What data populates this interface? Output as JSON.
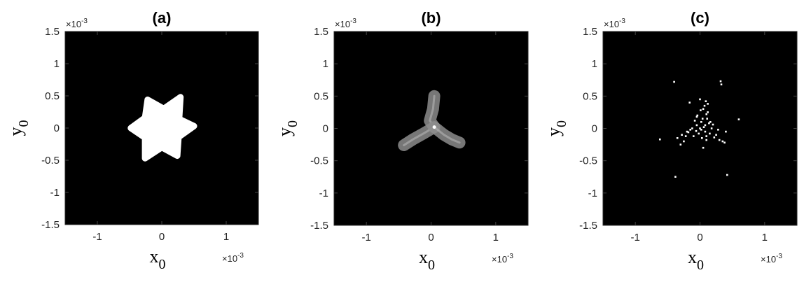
{
  "chart_data": [
    {
      "type": "heatmap",
      "title": "(a)",
      "xlabel": "x",
      "xlabel_sub": "0",
      "ylabel": "y",
      "ylabel_sub": "0",
      "x_exponent": "×10",
      "x_exponent_power": "-3",
      "y_exponent": "×10",
      "y_exponent_power": "-3",
      "xlim": [
        -1.5,
        1.5
      ],
      "ylim": [
        -1.5,
        1.5
      ],
      "x_ticks": [
        -1,
        0,
        1
      ],
      "x_tick_labels": [
        "-1",
        "0",
        "1"
      ],
      "y_ticks": [
        1.5,
        1,
        0.5,
        0,
        -0.5,
        -1,
        -1.5
      ],
      "y_tick_labels": [
        "1.5",
        "1",
        "0.5",
        "0",
        "-0.5",
        "-1",
        "-1.5"
      ],
      "background_color": "#000000",
      "shape": "six-pointed-star",
      "shape_color": "#ffffff",
      "shape_vertices": [
        [
          0.5,
          0.03
        ],
        [
          0.27,
          0.14
        ],
        [
          0.29,
          0.48
        ],
        [
          0.03,
          0.3
        ],
        [
          -0.22,
          0.44
        ],
        [
          -0.26,
          0.16
        ],
        [
          -0.48,
          0.0
        ],
        [
          -0.26,
          -0.15
        ],
        [
          -0.26,
          -0.47
        ],
        [
          0.0,
          -0.3
        ],
        [
          0.24,
          -0.43
        ],
        [
          0.26,
          -0.14
        ]
      ]
    },
    {
      "type": "heatmap",
      "title": "(b)",
      "xlabel": "x",
      "xlabel_sub": "0",
      "ylabel": "y",
      "ylabel_sub": "0",
      "x_exponent": "×10",
      "x_exponent_power": "-3",
      "y_exponent": "×10",
      "y_exponent_power": "-3",
      "xlim": [
        -1.5,
        1.5
      ],
      "ylim": [
        -1.5,
        1.5
      ],
      "x_ticks": [
        -1,
        0,
        1
      ],
      "x_tick_labels": [
        "-1",
        "0",
        "1"
      ],
      "y_ticks": [
        1.5,
        1,
        0.5,
        0,
        -0.5,
        -1,
        -1.5
      ],
      "y_tick_labels": [
        "1.5",
        "1",
        "0.5",
        "0",
        "-0.5",
        "-1",
        "-1.5"
      ],
      "background_color": "#000000",
      "shape": "three-armed-tripod",
      "shape_color": "#8c8c8c",
      "center": [
        0.05,
        0.02
      ],
      "arms": [
        [
          [
            0.05,
            0.02
          ],
          [
            -0.02,
            0.12
          ],
          [
            0.03,
            0.3
          ],
          [
            0.05,
            0.5
          ]
        ],
        [
          [
            0.05,
            0.02
          ],
          [
            -0.12,
            -0.08
          ],
          [
            -0.28,
            -0.17
          ],
          [
            -0.42,
            -0.26
          ]
        ],
        [
          [
            0.05,
            0.02
          ],
          [
            0.2,
            -0.1
          ],
          [
            0.32,
            -0.17
          ],
          [
            0.44,
            -0.22
          ]
        ]
      ]
    },
    {
      "type": "scatter",
      "title": "(c)",
      "xlabel": "x",
      "xlabel_sub": "0",
      "ylabel": "y",
      "ylabel_sub": "0",
      "x_exponent": "×10",
      "x_exponent_power": "-3",
      "y_exponent": "×10",
      "y_exponent_power": "-3",
      "xlim": [
        -1.5,
        1.5
      ],
      "ylim": [
        -1.5,
        1.5
      ],
      "x_ticks": [
        -1,
        0,
        1
      ],
      "x_tick_labels": [
        "-1",
        "0",
        "1"
      ],
      "y_ticks": [
        1.5,
        1,
        0.5,
        0,
        -0.5,
        -1,
        -1.5
      ],
      "y_tick_labels": [
        "1.5",
        "1",
        "0.5",
        "0",
        "-0.5",
        "-1",
        "-1.5"
      ],
      "background_color": "#000000",
      "point_color": "#ffffff",
      "x": [
        -0.4,
        0.32,
        0.33,
        -0.62,
        0.6,
        -0.38,
        0.42,
        0.0,
        -0.16,
        0.12,
        0.05,
        0.1,
        -0.05,
        0.02,
        0.08,
        -0.12,
        -0.2,
        -0.28,
        -0.35,
        0.15,
        0.22,
        0.3,
        0.38,
        0.4,
        0.02,
        0.06,
        -0.02,
        0.1,
        0.14,
        -0.08,
        -0.25,
        -0.3,
        -0.1,
        0.0,
        0.04,
        0.18,
        0.25,
        -0.15,
        0.08,
        0.12,
        0.2,
        -0.05,
        0.03,
        0.07,
        0.01,
        -0.04,
        0.1,
        0.16,
        -0.18,
        -0.22,
        0.28,
        0.35,
        0.05,
        0.09,
        -0.06,
        0.11
      ],
      "y": [
        0.72,
        0.73,
        0.68,
        -0.17,
        0.14,
        -0.75,
        -0.72,
        0.45,
        0.4,
        0.38,
        0.3,
        0.22,
        0.18,
        0.1,
        0.05,
        0.0,
        -0.05,
        -0.1,
        -0.15,
        -0.08,
        -0.14,
        -0.18,
        -0.22,
        -0.05,
        -0.02,
        0.02,
        -0.08,
        -0.12,
        0.08,
        0.12,
        -0.2,
        -0.25,
        -0.12,
        0.0,
        0.15,
        0.0,
        -0.1,
        -0.02,
        -0.05,
        0.25,
        0.06,
        0.05,
        -0.15,
        0.35,
        0.28,
        0.2,
        -0.18,
        0.1,
        -0.06,
        -0.12,
        -0.02,
        -0.2,
        -0.3,
        0.42,
        -0.04,
        0.15
      ]
    }
  ]
}
